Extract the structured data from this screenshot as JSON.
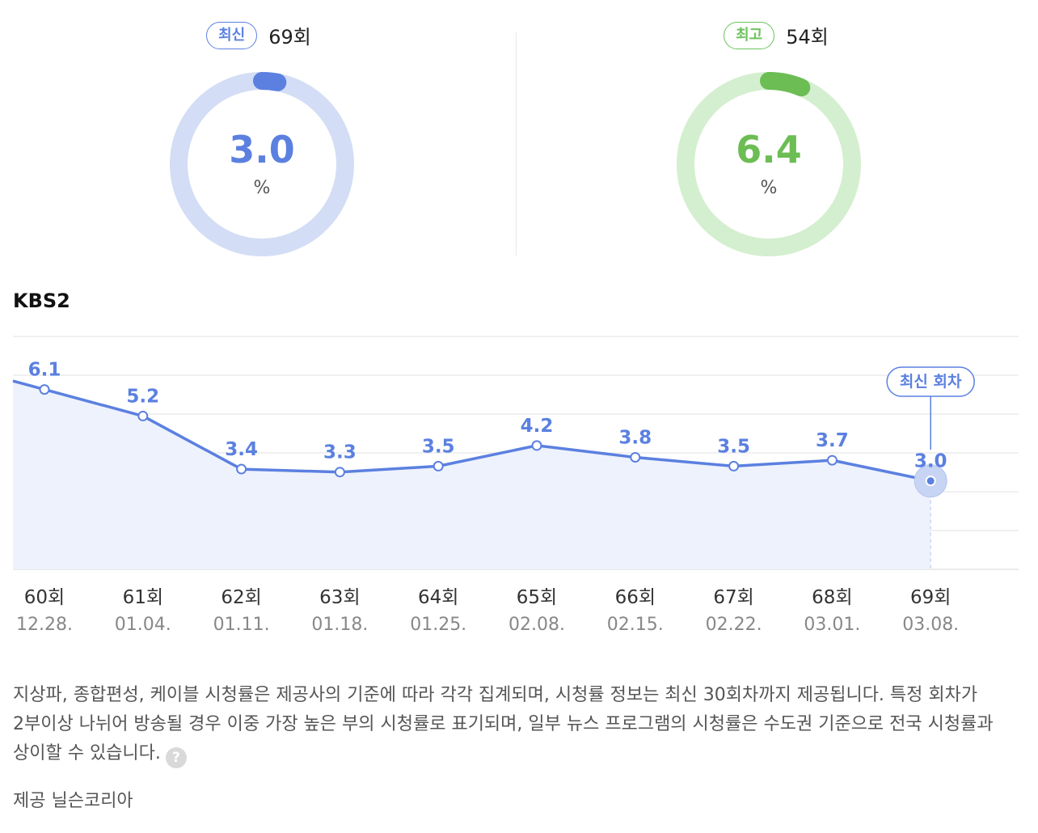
{
  "gauges": {
    "latest": {
      "badge": "최신",
      "episode": "69회",
      "value": "3.0",
      "unit": "%",
      "percent": 3.0,
      "track_color": "#d3ddf5",
      "fill_color": "#5b80e0",
      "text_color": "#5b80e0"
    },
    "highest": {
      "badge": "최고",
      "episode": "54회",
      "value": "6.4",
      "unit": "%",
      "percent": 6.4,
      "track_color": "#d4efcf",
      "fill_color": "#6cbd54",
      "text_color": "#6cbd54"
    }
  },
  "channel": "KBS2",
  "chart_data": {
    "type": "line",
    "categories": [
      "60회",
      "61회",
      "62회",
      "63회",
      "64회",
      "65회",
      "66회",
      "67회",
      "68회",
      "69회"
    ],
    "dates": [
      "12.28.",
      "01.04.",
      "01.11.",
      "01.18.",
      "01.25.",
      "02.08.",
      "02.15.",
      "02.22.",
      "03.01.",
      "03.08."
    ],
    "series": [
      {
        "values": [
          6.1,
          5.2,
          3.4,
          3.3,
          3.5,
          4.2,
          3.8,
          3.5,
          3.7,
          3.0
        ]
      }
    ],
    "value_labels": [
      "6.1",
      "5.2",
      "3.4",
      "3.3",
      "3.5",
      "4.2",
      "3.8",
      "3.5",
      "3.7",
      "3.0"
    ],
    "highlight_label": "최신 회차",
    "line_color": "#5b80e0",
    "fill_color": "#eef2fc",
    "grid": true
  },
  "note": {
    "text": "지상파, 종합편성, 케이블 시청률은 제공사의 기준에 따라 각각 집계되며, 시청률 정보는 최신 30회차까지 제공됩니다. 특정 회차가 2부이상 나뉘어 방송될 경우 이중 가장 높은 부의 시청률로 표기되며, 일부 뉴스 프로그램의 시청률은 수도권 기준으로 전국 시청률과 상이할 수 있습니다.",
    "help_icon": "?"
  },
  "source": "제공 닐슨코리아"
}
